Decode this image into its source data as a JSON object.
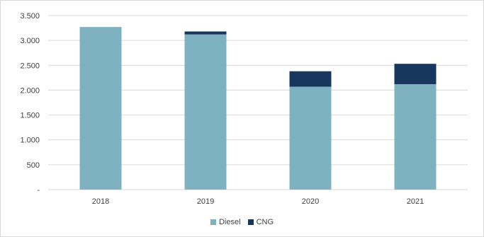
{
  "chart_data": {
    "type": "bar",
    "stacked": true,
    "categories": [
      "2018",
      "2019",
      "2020",
      "2021"
    ],
    "series": [
      {
        "name": "Diesel",
        "color": "#7fb2c1",
        "values": [
          3270,
          3120,
          2070,
          2120
        ]
      },
      {
        "name": "CNG",
        "color": "#17375e",
        "values": [
          0,
          60,
          310,
          410
        ]
      }
    ],
    "ylim": [
      0,
      3500
    ],
    "yticks": [
      0,
      500,
      1000,
      1500,
      2000,
      2500,
      3000,
      3500
    ],
    "ytick_labels": [
      "-",
      "500",
      "1.000",
      "1.500",
      "2.000",
      "2.500",
      "3.000",
      "3.500"
    ],
    "grid": true,
    "legend_position": "bottom",
    "title": "",
    "xlabel": "",
    "ylabel": ""
  }
}
